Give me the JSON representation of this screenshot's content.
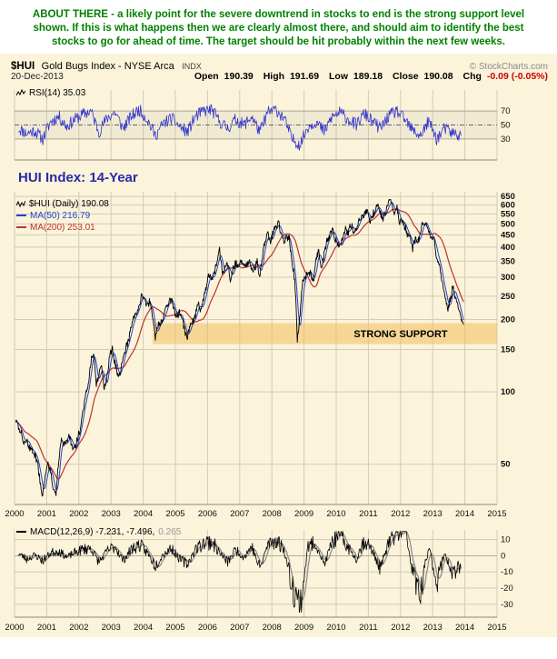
{
  "annotation": {
    "text": "ABOUT THERE - a likely point for the severe downtrend in stocks to end is the strong support level shown. If this is what happens then we are clearly almost there, and should aim to identify the best stocks to go for ahead of time. The target should be hit probably within the next few weeks.",
    "color": "#008200"
  },
  "header": {
    "symbol": "$HUI",
    "name": "Gold Bugs Index - NYSE Arca",
    "exchange": "INDX",
    "copyright": "© StockCharts.com",
    "date": "20-Dec-2013",
    "quote": [
      {
        "label": "Open",
        "value": "190.39",
        "value_color": "#000000"
      },
      {
        "label": "High",
        "value": "191.69",
        "value_color": "#000000"
      },
      {
        "label": "Low",
        "value": "189.18",
        "value_color": "#000000"
      },
      {
        "label": "Close",
        "value": "190.08",
        "value_color": "#000000"
      },
      {
        "label": "Chg",
        "value": "-0.09 (-0.05%)",
        "value_color": "#CC0000"
      }
    ]
  },
  "rsi_panel": {
    "label": "RSI(14) 35.03"
  },
  "main_panel": {
    "title": "HUI Index: 14-Year",
    "legend": [
      {
        "label": "$HUI (Daily) 190.08",
        "color": "#000000"
      },
      {
        "label": "MA(50) 216.79",
        "color": "#2244CC"
      },
      {
        "label": "MA(200) 253.01",
        "color": "#BB3333"
      }
    ]
  },
  "macd_panel": {
    "label": "MACD(12,26,9) -7.231, -7.496,",
    "hist_value": "0.265"
  },
  "chart_data": [
    {
      "type": "line",
      "name": "RSI(14)",
      "panel": "indicator-top",
      "current_value": 35.03,
      "ylim": [
        0,
        100
      ],
      "yticks": [
        70,
        50,
        30
      ],
      "line_color": "#3333CC",
      "x_start_year": 2000,
      "x_end_year": 2014,
      "sample_interval": "quarterly",
      "values": [
        45,
        38,
        42,
        30,
        55,
        62,
        48,
        58,
        65,
        70,
        40,
        60,
        68,
        45,
        62,
        72,
        58,
        35,
        52,
        60,
        48,
        40,
        62,
        70,
        72,
        55,
        45,
        58,
        50,
        62,
        40,
        68,
        72,
        60,
        30,
        22,
        48,
        55,
        40,
        62,
        68,
        58,
        50,
        66,
        55,
        45,
        62,
        70,
        58,
        42,
        35,
        55,
        30,
        45,
        38,
        35.03
      ]
    },
    {
      "type": "line",
      "name": "$HUI Gold Bugs Index - NYSE Arca",
      "title": "HUI Index: 14-Year",
      "scale": "log",
      "ylim": [
        34,
        680
      ],
      "yticks": [
        650,
        600,
        550,
        500,
        450,
        400,
        350,
        300,
        250,
        200,
        150,
        100,
        50
      ],
      "x_years": [
        "2000",
        "2001",
        "2002",
        "2003",
        "2004",
        "2005",
        "2006",
        "2007",
        "2008",
        "2009",
        "2010",
        "2011",
        "2012",
        "2013",
        "2014",
        "2015"
      ],
      "sample_interval": "monthly",
      "x_start_year": 2000,
      "series": [
        {
          "name": "$HUI (Daily)",
          "color": "#000000",
          "last_value": 190.08,
          "values": [
            76,
            72,
            67,
            61,
            64,
            59,
            57,
            55,
            51,
            43,
            37,
            44,
            50,
            46,
            40,
            37,
            52,
            64,
            60,
            62,
            66,
            59,
            57,
            64,
            70,
            84,
            96,
            105,
            135,
            147,
            108,
            118,
            128,
            102,
            116,
            140,
            150,
            132,
            116,
            122,
            138,
            152,
            164,
            186,
            204,
            212,
            232,
            252,
            240,
            228,
            238,
            204,
            170,
            188,
            196,
            202,
            224,
            238,
            244,
            218,
            206,
            214,
            200,
            178,
            170,
            190,
            196,
            208,
            234,
            218,
            242,
            268,
            310,
            296,
            308,
            348,
            390,
            310,
            324,
            342,
            294,
            322,
            344,
            334,
            348,
            332,
            338,
            356,
            328,
            324,
            346,
            298,
            372,
            428,
            448,
            418,
            462,
            488,
            500,
            448,
            428,
            446,
            432,
            340,
            296,
            160,
            212,
            288,
            302,
            322,
            308,
            286,
            352,
            390,
            322,
            376,
            426,
            442,
            476,
            436,
            416,
            398,
            438,
            472,
            458,
            498,
            464,
            478,
            516,
            538,
            552,
            566,
            516,
            546,
            566,
            600,
            548,
            530,
            566,
            608,
            628,
            548,
            596,
            508,
            518,
            492,
            458,
            438,
            396,
            442,
            420,
            456,
            518,
            498,
            458,
            442,
            426,
            362,
            346,
            282,
            262,
            218,
            242,
            272,
            248,
            232,
            202,
            191
          ]
        },
        {
          "name": "MA(50)",
          "color": "#2244CC",
          "last_value": 216.79,
          "derived": "50-day moving average of $HUI"
        },
        {
          "name": "MA(200)",
          "color": "#BB3333",
          "last_value": 253.01,
          "derived": "200-day moving average of $HUI"
        }
      ],
      "support_zone": {
        "label": "STRONG SUPPORT",
        "value_from": 158,
        "value_to": 193,
        "year_from": 2004.3,
        "year_to": 2015.5,
        "color": "#F2BE5C"
      }
    },
    {
      "type": "line",
      "name": "MACD(12,26,9)",
      "panel": "indicator-bottom",
      "macd_value": -7.231,
      "signal_value": -7.496,
      "histogram_value": 0.265,
      "ylim": [
        -38,
        16
      ],
      "yticks": [
        10,
        0,
        -10,
        -20,
        -30
      ],
      "sample_interval": "quarterly",
      "x_start_year": 2000,
      "values": [
        1.5,
        -2,
        0.5,
        -3,
        2,
        3,
        -1,
        2,
        4,
        5,
        -4,
        3,
        6,
        -3,
        4,
        7,
        2,
        -6,
        1,
        5,
        -2,
        -5,
        4,
        8,
        9,
        2,
        -4,
        4,
        -1,
        6,
        -8,
        7,
        10,
        4,
        -18,
        -32,
        6,
        8,
        -6,
        9,
        12,
        5,
        -2,
        10,
        3,
        -8,
        8,
        14,
        19,
        -10,
        -25,
        6,
        -16,
        2,
        -12,
        -7.231
      ]
    }
  ]
}
